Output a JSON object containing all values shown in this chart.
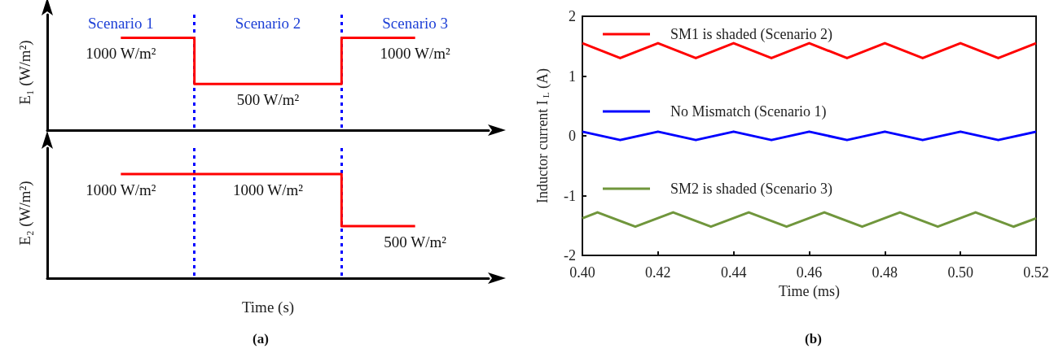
{
  "chart_data": [
    {
      "type": "step",
      "categories": [
        "Scenario 1",
        "Scenario 2",
        "Scenario 3"
      ],
      "values": [
        1000,
        500,
        1000
      ],
      "value_labels": [
        "1000 W/m²",
        "500 W/m²",
        "1000 W/m²"
      ],
      "color": "#ff0000",
      "ylabel": "E₁ (W/m²)",
      "ylim": [
        0,
        1250
      ],
      "tick_labels": "x",
      "grid": "x"
    },
    {
      "type": "step",
      "categories": [
        null,
        null,
        null
      ],
      "values": [
        1000,
        1000,
        500
      ],
      "value_labels": [
        "1000 W/m²",
        "1000 W/m²",
        "500 W/m²"
      ],
      "color": "#ff0000",
      "ylabel": "E₂ (W/m²)",
      "xlabel": "Time (s)",
      "ylim": [
        0,
        1250
      ],
      "tick_labels": false,
      "grid": "x",
      "annotations": [
        "(a)"
      ]
    },
    {
      "type": "line",
      "xlabel": "Time (ms)",
      "ylabel": "Inductor current I$_{L}$ (A)",
      "xlim": [
        0.4,
        0.52
      ],
      "ylim": [
        -2,
        2
      ],
      "xticks": [
        {
          "value": 0.4,
          "label": "0.40"
        },
        0.42,
        0.44,
        0.46,
        0.48,
        {
          "value": 0.5,
          "label": "0.50"
        },
        0.52
      ],
      "yticks": [
        -2,
        -1,
        0,
        1,
        2
      ],
      "grid": false,
      "legend": "top left",
      "marker": "none",
      "annotations": [
        "(b)"
      ],
      "series": [
        {
          "name": "SM1 is shaded (Scenario 2)",
          "color": "#ff0000",
          "x": [
            0.4,
            0.41,
            0.42,
            0.43,
            0.44,
            0.45,
            0.46,
            0.47,
            0.48,
            0.49,
            0.5,
            0.51,
            0.52
          ],
          "values": [
            1.55,
            1.3,
            1.55,
            1.3,
            1.55,
            1.3,
            1.55,
            1.3,
            1.55,
            1.3,
            1.55,
            1.3,
            1.55
          ]
        },
        {
          "name": "No Mismatch (Scenario 1)",
          "color": "#0000ff",
          "x": [
            0.4,
            0.41,
            0.42,
            0.43,
            0.44,
            0.45,
            0.46,
            0.47,
            0.48,
            0.49,
            0.5,
            0.51,
            0.52
          ],
          "values": [
            0.07,
            -0.07,
            0.07,
            -0.07,
            0.07,
            -0.07,
            0.07,
            -0.07,
            0.07,
            -0.07,
            0.07,
            -0.07,
            0.07
          ]
        },
        {
          "name": "SM2 is shaded (Scenario 3)",
          "color": "#70963c",
          "x": [
            0.4,
            0.404,
            0.414,
            0.424,
            0.434,
            0.444,
            0.454,
            0.464,
            0.474,
            0.484,
            0.494,
            0.504,
            0.514,
            0.52
          ],
          "values": [
            -1.38,
            -1.28,
            -1.52,
            -1.28,
            -1.52,
            -1.28,
            -1.52,
            -1.28,
            -1.52,
            -1.28,
            -1.52,
            -1.28,
            -1.52,
            -1.38
          ]
        }
      ]
    }
  ]
}
